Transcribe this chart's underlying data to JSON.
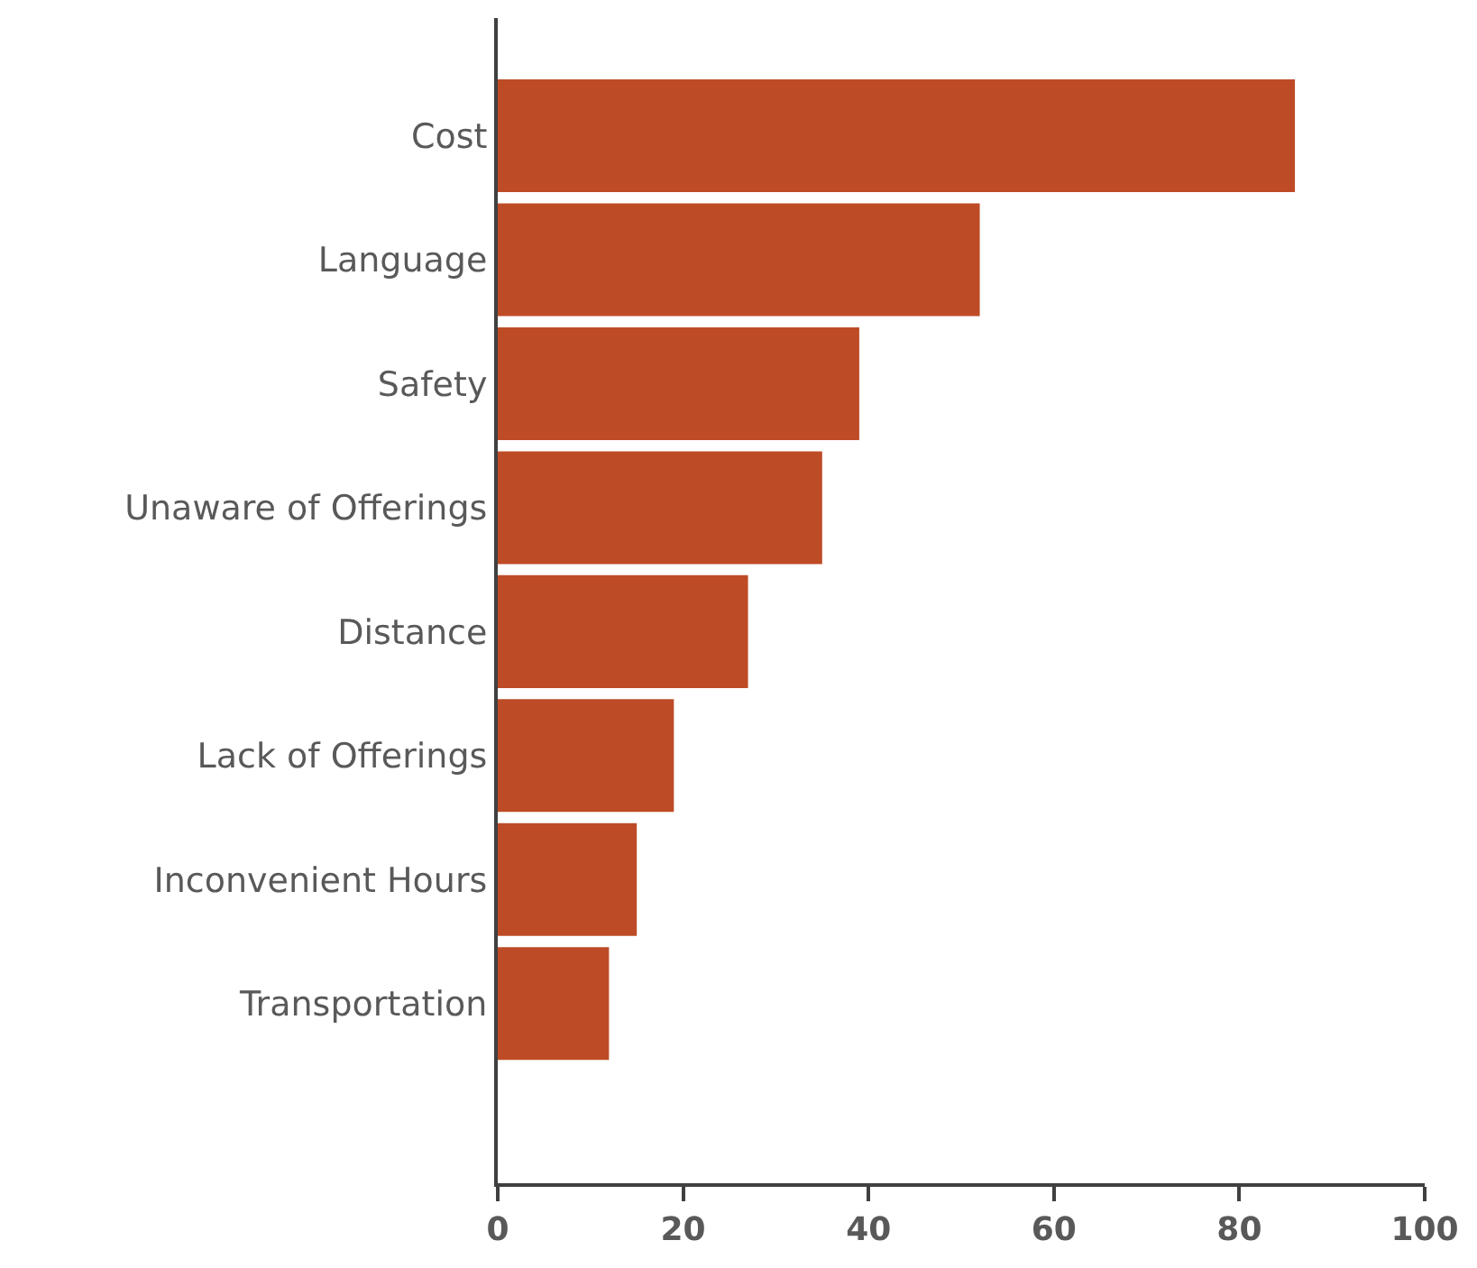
{
  "chart_data": {
    "type": "bar",
    "orientation": "horizontal",
    "categories": [
      "Cost",
      "Language",
      "Safety",
      "Unaware of Offerings",
      "Distance",
      "Lack of Offerings",
      "Inconvenient Hours",
      "Transportation"
    ],
    "values": [
      86,
      52,
      39,
      35,
      27,
      19,
      15,
      12
    ],
    "color": "#bd4b26",
    "xlim": [
      0,
      100
    ],
    "xticks": [
      0,
      20,
      40,
      60,
      80,
      100
    ]
  }
}
